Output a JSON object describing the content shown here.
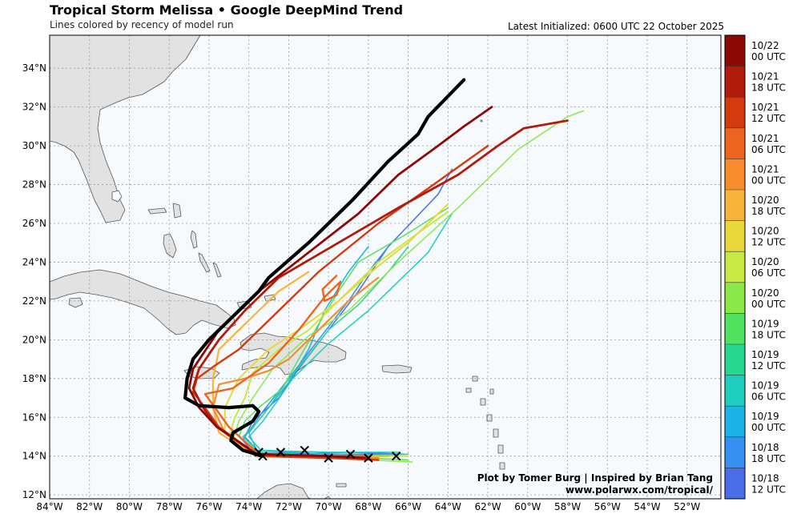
{
  "header": {
    "title": "Tropical Storm Melissa • Google DeepMind Trend",
    "subtitle": "Lines colored by recency of model run",
    "latest": "Latest Initialized: 0600 UTC 22 October 2025"
  },
  "credits": {
    "line1": "Plot by Tomer Burg | Inspired by Brian Tang",
    "line2": "www.polarwx.com/tropical/"
  },
  "map": {
    "lon_range": [
      -84,
      -50.3
    ],
    "lat_range": [
      11.8,
      35.7
    ],
    "lon_ticks": [
      {
        "v": -84,
        "label": "84°W"
      },
      {
        "v": -82,
        "label": "82°W"
      },
      {
        "v": -80,
        "label": "80°W"
      },
      {
        "v": -78,
        "label": "78°W"
      },
      {
        "v": -76,
        "label": "76°W"
      },
      {
        "v": -74,
        "label": "74°W"
      },
      {
        "v": -72,
        "label": "72°W"
      },
      {
        "v": -70,
        "label": "70°W"
      },
      {
        "v": -68,
        "label": "68°W"
      },
      {
        "v": -66,
        "label": "66°W"
      },
      {
        "v": -64,
        "label": "64°W"
      },
      {
        "v": -62,
        "label": "62°W"
      },
      {
        "v": -60,
        "label": "60°W"
      },
      {
        "v": -58,
        "label": "58°W"
      },
      {
        "v": -56,
        "label": "56°W"
      },
      {
        "v": -54,
        "label": "54°W"
      },
      {
        "v": -52,
        "label": "52°W"
      }
    ],
    "lat_ticks": [
      {
        "v": 12,
        "label": "12°N"
      },
      {
        "v": 14,
        "label": "14°N"
      },
      {
        "v": 16,
        "label": "16°N"
      },
      {
        "v": 18,
        "label": "18°N"
      },
      {
        "v": 20,
        "label": "20°N"
      },
      {
        "v": 22,
        "label": "22°N"
      },
      {
        "v": 24,
        "label": "24°N"
      },
      {
        "v": 26,
        "label": "26°N"
      },
      {
        "v": 28,
        "label": "28°N"
      },
      {
        "v": 30,
        "label": "30°N"
      },
      {
        "v": 32,
        "label": "32°N"
      },
      {
        "v": 34,
        "label": "34°N"
      }
    ],
    "colors": {
      "ocean": "#f6fafd",
      "land": "#e2e2e2",
      "coast": "#555555",
      "grid": "#9a9a9a"
    }
  },
  "colorbar": [
    {
      "date": "10/22",
      "time": "00 UTC",
      "color": "#8b0a05"
    },
    {
      "date": "10/21",
      "time": "18 UTC",
      "color": "#b11b0c"
    },
    {
      "date": "10/21",
      "time": "12 UTC",
      "color": "#d33a10"
    },
    {
      "date": "10/21",
      "time": "06 UTC",
      "color": "#ec6420"
    },
    {
      "date": "10/21",
      "time": "00 UTC",
      "color": "#f68c2e"
    },
    {
      "date": "10/20",
      "time": "18 UTC",
      "color": "#f7b43c"
    },
    {
      "date": "10/20",
      "time": "12 UTC",
      "color": "#e8d83c"
    },
    {
      "date": "10/20",
      "time": "06 UTC",
      "color": "#c8e844"
    },
    {
      "date": "10/20",
      "time": "00 UTC",
      "color": "#8ce84a"
    },
    {
      "date": "10/19",
      "time": "18 UTC",
      "color": "#52e260"
    },
    {
      "date": "10/19",
      "time": "12 UTC",
      "color": "#28d890"
    },
    {
      "date": "10/19",
      "time": "06 UTC",
      "color": "#1ecfc0"
    },
    {
      "date": "10/19",
      "time": "00 UTC",
      "color": "#1cb4e6"
    },
    {
      "date": "10/18",
      "time": "18 UTC",
      "color": "#3590f0"
    },
    {
      "date": "10/18",
      "time": "12 UTC",
      "color": "#4a6ee8"
    }
  ],
  "latest_track_color": "#000000",
  "tracks": [
    {
      "color": "#4a6ee8",
      "width": 1.5,
      "points": [
        [
          -66.2,
          14.1
        ],
        [
          -69,
          14.2
        ],
        [
          -72,
          14.1
        ],
        [
          -73.8,
          14.2
        ],
        [
          -74.3,
          14.8
        ],
        [
          -73.8,
          15.8
        ],
        [
          -72.5,
          17.0
        ],
        [
          -71.5,
          18.5
        ],
        [
          -70.0,
          20.5
        ],
        [
          -68.5,
          22.5
        ],
        [
          -67.0,
          24.8
        ],
        [
          -64.5,
          27.5
        ],
        [
          -63.8,
          28.8
        ]
      ]
    },
    {
      "color": "#3590f0",
      "width": 1.5,
      "points": [
        [
          -66.5,
          14.1
        ],
        [
          -70,
          14.1
        ],
        [
          -73.5,
          14.2
        ],
        [
          -74.2,
          15.0
        ],
        [
          -73.3,
          16.3
        ],
        [
          -72.0,
          18.0
        ],
        [
          -70.5,
          20.0
        ],
        [
          -69.0,
          22.0
        ],
        [
          -68.0,
          23.5
        ],
        [
          -67.0,
          24.8
        ]
      ]
    },
    {
      "color": "#1cb4e6",
      "width": 1.5,
      "points": [
        [
          -66.2,
          14.0
        ],
        [
          -70,
          14.1
        ],
        [
          -73.6,
          14.3
        ],
        [
          -74.0,
          15.2
        ],
        [
          -73.0,
          16.5
        ],
        [
          -72.0,
          17.8
        ],
        [
          -71.0,
          19.5
        ],
        [
          -70.2,
          21.5
        ],
        [
          -69.0,
          23.5
        ],
        [
          -68.0,
          24.8
        ]
      ]
    },
    {
      "color": "#1ecfc0",
      "width": 1.5,
      "points": [
        [
          -66.4,
          14.2
        ],
        [
          -70,
          14.2
        ],
        [
          -73.4,
          14.3
        ],
        [
          -74.0,
          15.0
        ],
        [
          -73.3,
          15.8
        ],
        [
          -72.6,
          16.8
        ],
        [
          -71.8,
          18.0
        ],
        [
          -70.0,
          19.8
        ],
        [
          -68.0,
          21.5
        ],
        [
          -66.5,
          23.0
        ],
        [
          -65.0,
          24.5
        ],
        [
          -63.8,
          26.5
        ]
      ]
    },
    {
      "color": "#28d890",
      "width": 1.5,
      "points": [
        [
          -66.0,
          14.1
        ],
        [
          -70,
          14.0
        ],
        [
          -73.5,
          14.2
        ],
        [
          -74.3,
          15.0
        ],
        [
          -73.7,
          15.6
        ],
        [
          -73.0,
          16.5
        ],
        [
          -72.2,
          17.7
        ],
        [
          -71.0,
          19.2
        ],
        [
          -70.0,
          20.5
        ],
        [
          -68.5,
          21.8
        ],
        [
          -67.0,
          23.5
        ],
        [
          -66.0,
          24.8
        ]
      ]
    },
    {
      "color": "#52e260",
      "width": 1.5,
      "points": [
        [
          -66.0,
          13.8
        ],
        [
          -70,
          14.0
        ],
        [
          -73.5,
          14.1
        ],
        [
          -74.5,
          15.0
        ],
        [
          -74.2,
          15.8
        ],
        [
          -73.5,
          16.5
        ],
        [
          -72.3,
          17.5
        ],
        [
          -71.5,
          19.0
        ],
        [
          -70.5,
          20.8
        ],
        [
          -69.5,
          22.5
        ],
        [
          -68.5,
          24.0
        ],
        [
          -66.0,
          25.5
        ],
        [
          -64.0,
          26.8
        ]
      ]
    },
    {
      "color": "#8ce84a",
      "width": 1.5,
      "points": [
        [
          -65.8,
          13.7
        ],
        [
          -70,
          13.9
        ],
        [
          -73.7,
          14.0
        ],
        [
          -74.8,
          14.8
        ],
        [
          -74.5,
          15.8
        ],
        [
          -73.8,
          17.0
        ],
        [
          -72.8,
          18.5
        ],
        [
          -71.0,
          20.2
        ],
        [
          -69.0,
          21.5
        ],
        [
          -66.5,
          24.0
        ],
        [
          -63.5,
          26.8
        ],
        [
          -60.5,
          29.8
        ],
        [
          -58.0,
          31.5
        ],
        [
          -57.2,
          31.8
        ]
      ]
    },
    {
      "color": "#c8e844",
      "width": 2.0,
      "points": [
        [
          -66.0,
          14.0
        ],
        [
          -70,
          14.0
        ],
        [
          -73.8,
          14.1
        ],
        [
          -75.0,
          15.0
        ],
        [
          -74.7,
          16.0
        ],
        [
          -74.2,
          17.0
        ],
        [
          -73.8,
          18.3
        ],
        [
          -72.5,
          19.5
        ],
        [
          -71.0,
          20.5
        ],
        [
          -69.5,
          22.0
        ],
        [
          -67.5,
          24.0
        ],
        [
          -65.5,
          25.5
        ],
        [
          -64.0,
          26.6
        ]
      ]
    },
    {
      "color": "#e8d83c",
      "width": 2.0,
      "points": [
        [
          -66.5,
          14.0
        ],
        [
          -70,
          14.0
        ],
        [
          -73.8,
          14.1
        ],
        [
          -75.2,
          15.2
        ],
        [
          -75.2,
          16.5
        ],
        [
          -74.5,
          18.0
        ],
        [
          -73.0,
          19.5
        ],
        [
          -71.5,
          20.5
        ],
        [
          -69.5,
          22.0
        ],
        [
          -67.5,
          23.8
        ],
        [
          -66.0,
          25.0
        ],
        [
          -64.0,
          27.0
        ]
      ]
    },
    {
      "color": "#f7b43c",
      "width": 2.2,
      "points": [
        [
          -67.0,
          14.0
        ],
        [
          -70,
          13.9
        ],
        [
          -73.8,
          14.1
        ],
        [
          -75.5,
          15.2
        ],
        [
          -75.8,
          16.5
        ],
        [
          -75.8,
          18.0
        ],
        [
          -75.5,
          19.5
        ],
        [
          -74.5,
          20.5
        ],
        [
          -73.5,
          21.5
        ],
        [
          -72.5,
          22.5
        ],
        [
          -71.0,
          23.5
        ]
      ]
    },
    {
      "color": "#f68c2e",
      "width": 2.2,
      "points": [
        [
          -67.5,
          13.9
        ],
        [
          -70,
          13.9
        ],
        [
          -73.6,
          14.0
        ],
        [
          -75.2,
          15.2
        ],
        [
          -75.8,
          16.5
        ],
        [
          -75.5,
          17.7
        ],
        [
          -74.2,
          18.0
        ],
        [
          -73.0,
          18.4
        ],
        [
          -72.0,
          19.0
        ],
        [
          -70.5,
          20.5
        ],
        [
          -69.0,
          22.0
        ],
        [
          -67.5,
          23.2
        ]
      ]
    },
    {
      "color": "#ec6420",
      "width": 2.4,
      "points": [
        [
          -68.0,
          14.0
        ],
        [
          -70,
          14.0
        ],
        [
          -73.5,
          14.1
        ],
        [
          -75.0,
          15.5
        ],
        [
          -75.7,
          16.5
        ],
        [
          -76.2,
          17.2
        ],
        [
          -74.8,
          17.5
        ],
        [
          -73.0,
          18.8
        ],
        [
          -71.5,
          20.5
        ],
        [
          -70.2,
          22.2
        ],
        [
          -69.4,
          23.0
        ],
        [
          -69.6,
          22.3
        ],
        [
          -70.2,
          22.0
        ],
        [
          -70.3,
          22.6
        ],
        [
          -69.6,
          23.3
        ]
      ]
    },
    {
      "color": "#d33a10",
      "width": 2.4,
      "points": [
        [
          -67.5,
          13.8
        ],
        [
          -70,
          13.9
        ],
        [
          -73.5,
          14.0
        ],
        [
          -75.5,
          15.5
        ],
        [
          -76.2,
          16.5
        ],
        [
          -76.8,
          17.3
        ],
        [
          -76.6,
          18.0
        ],
        [
          -75.8,
          18.6
        ],
        [
          -74.5,
          19.5
        ],
        [
          -72.5,
          21.5
        ],
        [
          -70.5,
          23.5
        ],
        [
          -67.5,
          26.0
        ],
        [
          -65.0,
          27.8
        ],
        [
          -62.0,
          30.0
        ]
      ]
    },
    {
      "color": "#b11b0c",
      "width": 2.8,
      "points": [
        [
          -68.0,
          13.9
        ],
        [
          -70,
          14.0
        ],
        [
          -73.6,
          14.1
        ],
        [
          -75.6,
          15.5
        ],
        [
          -76.3,
          16.5
        ],
        [
          -76.8,
          17.5
        ],
        [
          -76.5,
          18.5
        ],
        [
          -75.5,
          20.0
        ],
        [
          -74.2,
          21.5
        ],
        [
          -72.5,
          23.2
        ],
        [
          -69.5,
          25.0
        ],
        [
          -66.5,
          26.8
        ],
        [
          -63.5,
          28.5
        ],
        [
          -61.5,
          30.0
        ],
        [
          -60.2,
          30.9
        ],
        [
          -58.0,
          31.3
        ]
      ]
    },
    {
      "color": "#8b0a05",
      "width": 2.8,
      "points": [
        [
          -68.2,
          13.9
        ],
        [
          -70,
          14.0
        ],
        [
          -73.6,
          14.1
        ],
        [
          -75.6,
          15.5
        ],
        [
          -76.5,
          16.5
        ],
        [
          -77.0,
          17.5
        ],
        [
          -76.8,
          18.5
        ],
        [
          -75.5,
          20.5
        ],
        [
          -73.5,
          22.5
        ],
        [
          -71.0,
          24.5
        ],
        [
          -68.5,
          26.5
        ],
        [
          -66.5,
          28.5
        ],
        [
          -64.5,
          30.0
        ],
        [
          -63.2,
          31.0
        ],
        [
          -61.8,
          32.0
        ]
      ]
    },
    {
      "color": "#000000",
      "width": 4.2,
      "points": [
        [
          -73.3,
          14.0
        ],
        [
          -74.3,
          14.3
        ],
        [
          -74.9,
          14.8
        ],
        [
          -74.8,
          15.2
        ],
        [
          -74.3,
          15.5
        ],
        [
          -73.8,
          15.8
        ],
        [
          -73.5,
          16.3
        ],
        [
          -73.8,
          16.6
        ],
        [
          -75.0,
          16.5
        ],
        [
          -76.5,
          16.6
        ],
        [
          -77.2,
          17.0
        ],
        [
          -77.1,
          18.0
        ],
        [
          -76.8,
          19.0
        ],
        [
          -76.0,
          20.0
        ],
        [
          -75.0,
          21.0
        ],
        [
          -74.2,
          21.8
        ],
        [
          -73.5,
          22.5
        ],
        [
          -73.0,
          23.2
        ],
        [
          -71.0,
          25.0
        ],
        [
          -68.8,
          27.2
        ],
        [
          -67.0,
          29.2
        ],
        [
          -65.5,
          30.6
        ],
        [
          -65.0,
          31.5
        ],
        [
          -63.2,
          33.4
        ]
      ]
    }
  ],
  "positions": [
    {
      "lon": -73.3,
      "lat": 14.0
    },
    {
      "lon": -73.5,
      "lat": 14.2
    },
    {
      "lon": -72.4,
      "lat": 14.2
    },
    {
      "lon": -71.2,
      "lat": 14.3
    },
    {
      "lon": -70.0,
      "lat": 13.9
    },
    {
      "lon": -68.9,
      "lat": 14.1
    },
    {
      "lon": -68.0,
      "lat": 13.9
    },
    {
      "lon": -66.6,
      "lat": 14.0
    }
  ]
}
